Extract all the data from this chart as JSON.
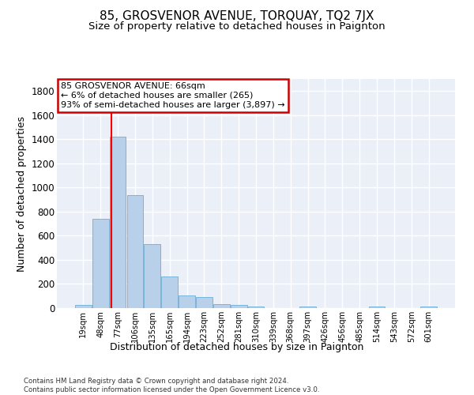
{
  "title": "85, GROSVENOR AVENUE, TORQUAY, TQ2 7JX",
  "subtitle": "Size of property relative to detached houses in Paignton",
  "xlabel": "Distribution of detached houses by size in Paignton",
  "ylabel": "Number of detached properties",
  "categories": [
    "19sqm",
    "48sqm",
    "77sqm",
    "106sqm",
    "135sqm",
    "165sqm",
    "194sqm",
    "223sqm",
    "252sqm",
    "281sqm",
    "310sqm",
    "339sqm",
    "368sqm",
    "397sqm",
    "426sqm",
    "456sqm",
    "485sqm",
    "514sqm",
    "543sqm",
    "572sqm",
    "601sqm"
  ],
  "values": [
    25,
    740,
    1420,
    940,
    530,
    265,
    105,
    95,
    35,
    28,
    15,
    0,
    0,
    15,
    0,
    0,
    0,
    15,
    0,
    0,
    15
  ],
  "bar_color": "#b8d0ea",
  "bar_edge_color": "#6aaed6",
  "red_line_x": 1.62,
  "annotation_text": "85 GROSVENOR AVENUE: 66sqm\n← 6% of detached houses are smaller (265)\n93% of semi-detached houses are larger (3,897) →",
  "annotation_box_color": "#ffffff",
  "annotation_box_edge_color": "#cc0000",
  "ylim": [
    0,
    1900
  ],
  "yticks": [
    0,
    200,
    400,
    600,
    800,
    1000,
    1200,
    1400,
    1600,
    1800
  ],
  "background_color": "#eaeff8",
  "grid_color": "#ffffff",
  "fig_background": "#ffffff",
  "footnote": "Contains HM Land Registry data © Crown copyright and database right 2024.\nContains public sector information licensed under the Open Government Licence v3.0.",
  "title_fontsize": 11,
  "subtitle_fontsize": 9.5,
  "xlabel_fontsize": 9,
  "ylabel_fontsize": 9,
  "annot_fontsize": 8
}
